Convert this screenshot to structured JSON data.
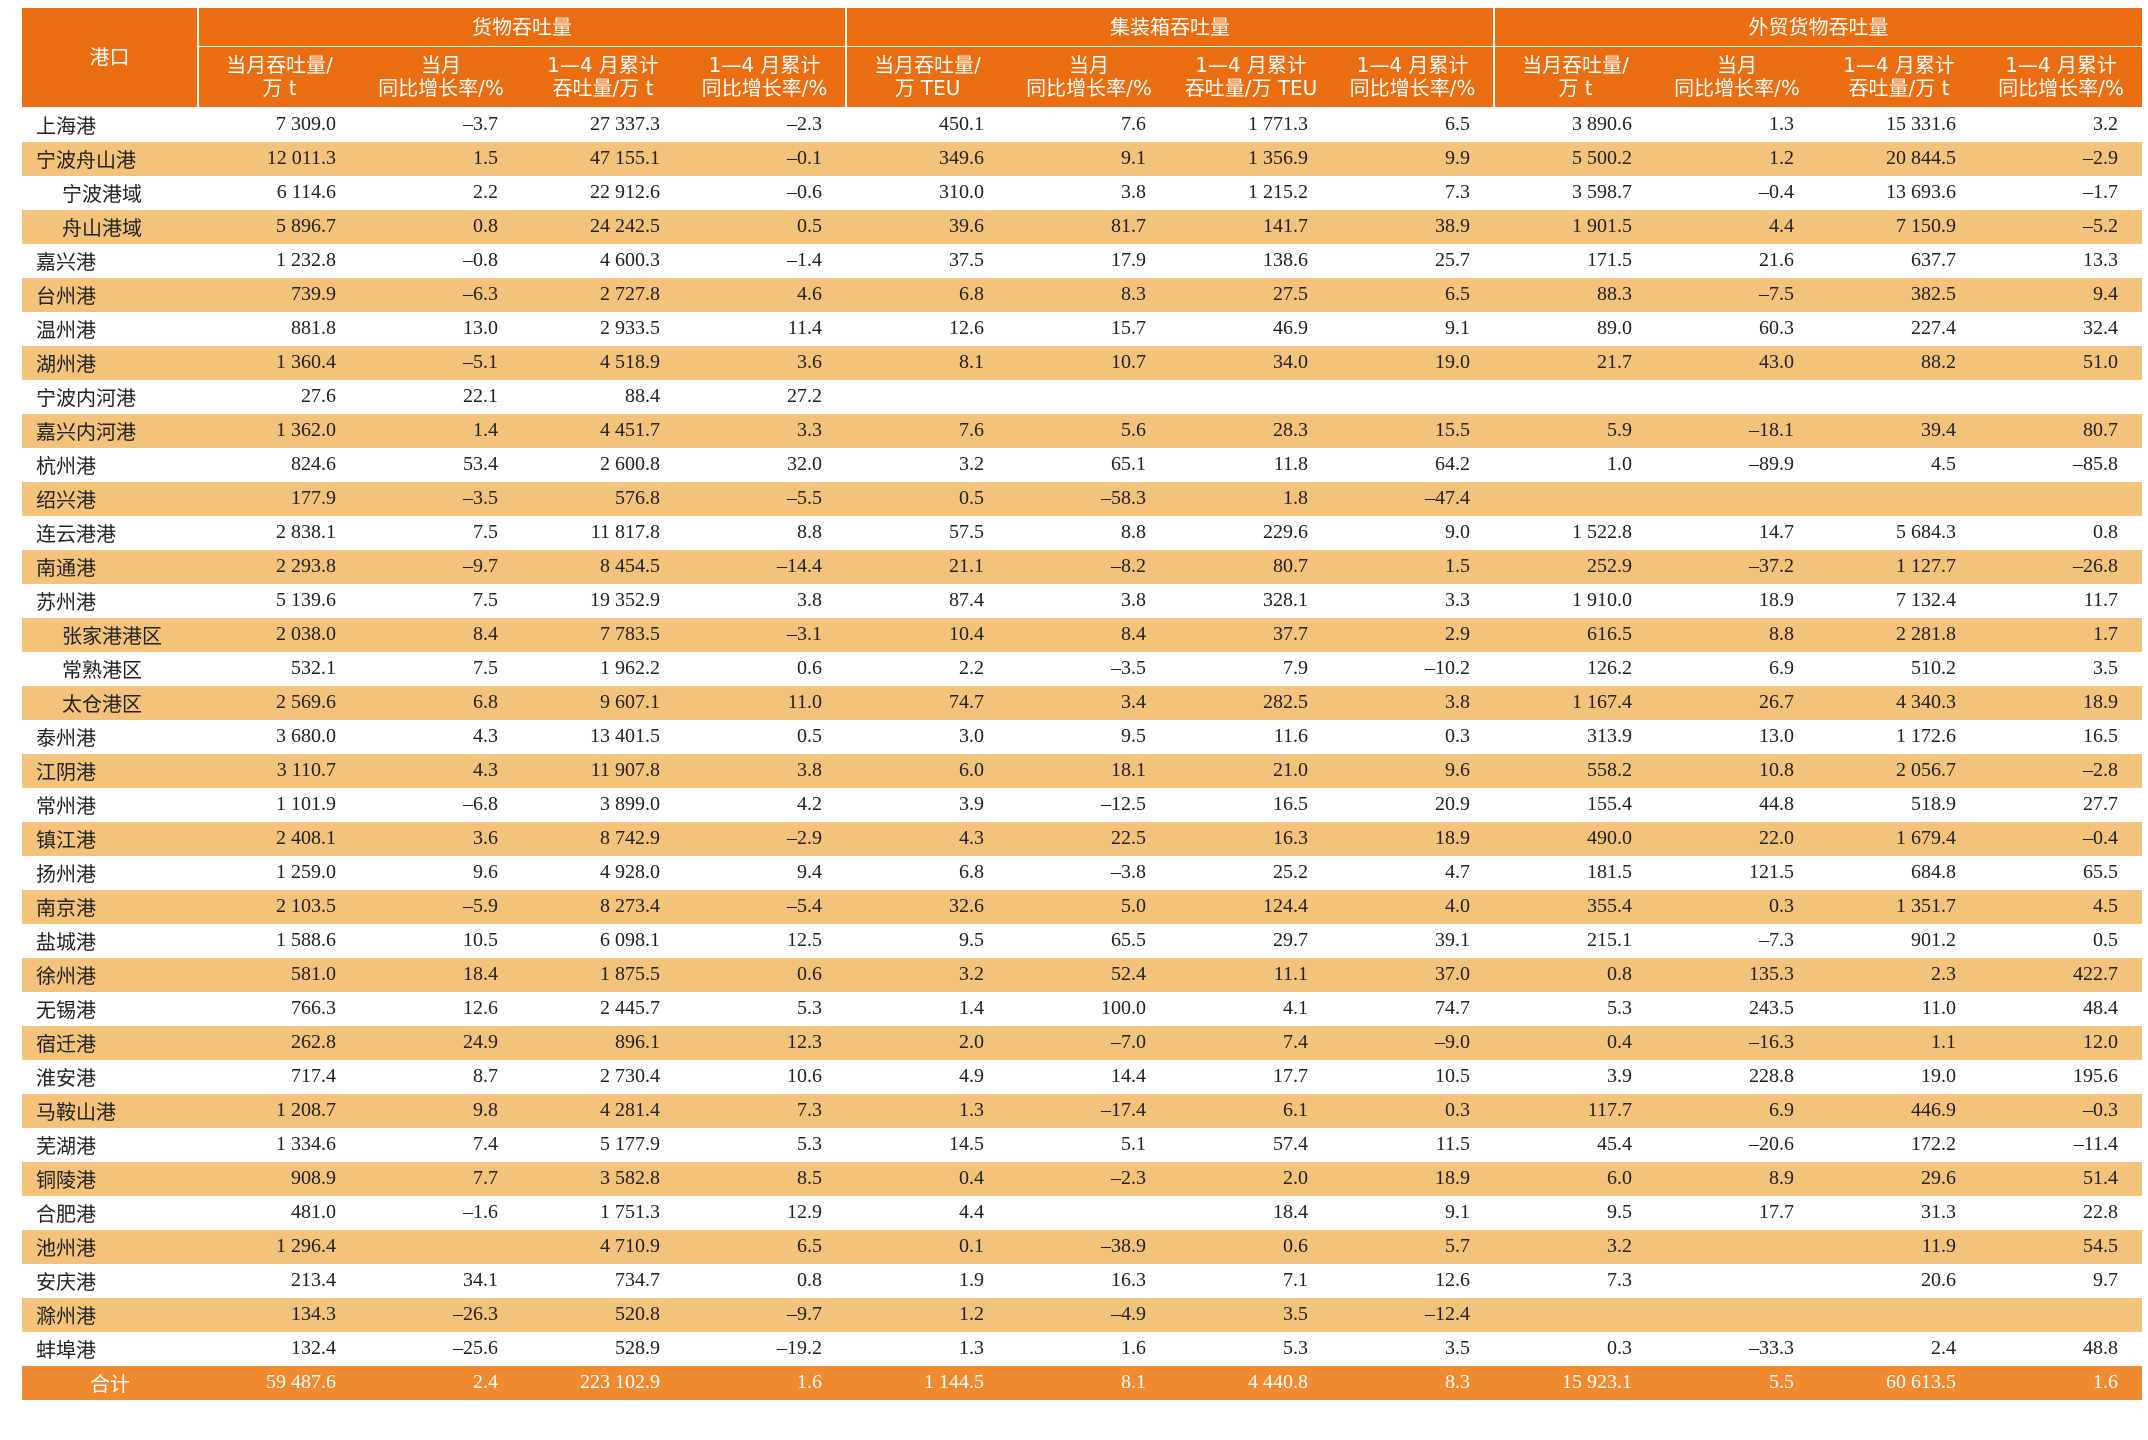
{
  "table": {
    "port_header": "港口",
    "groups": [
      "货物吞吐量",
      "集装箱吞吐量",
      "外贸货物吞吐量"
    ],
    "columns": [
      [
        "当月吞吐量/",
        "万 t"
      ],
      [
        "当月",
        "同比增长率/%"
      ],
      [
        "1—4 月累计",
        "吞吐量/万 t"
      ],
      [
        "1—4 月累计",
        "同比增长率/%"
      ],
      [
        "当月吞吐量/",
        "万 TEU"
      ],
      [
        "当月",
        "同比增长率/%"
      ],
      [
        "1—4 月累计",
        "吞吐量/万 TEU"
      ],
      [
        "1—4 月累计",
        "同比增长率/%"
      ],
      [
        "当月吞吐量/",
        "万 t"
      ],
      [
        "当月",
        "同比增长率/%"
      ],
      [
        "1—4 月累计",
        "吞吐量/万 t"
      ],
      [
        "1—4 月累计",
        "同比增长率/%"
      ]
    ],
    "rows": [
      {
        "port": "上海港",
        "cells": [
          "7 309.0",
          "–3.7",
          "27 337.3",
          "–2.3",
          "450.1",
          "7.6",
          "1 771.3",
          "6.5",
          "3 890.6",
          "1.3",
          "15 331.6",
          "3.2"
        ]
      },
      {
        "port": "宁波舟山港",
        "cells": [
          "12 011.3",
          "1.5",
          "47 155.1",
          "–0.1",
          "349.6",
          "9.1",
          "1 356.9",
          "9.9",
          "5 500.2",
          "1.2",
          "20 844.5",
          "–2.9"
        ]
      },
      {
        "port": "宁波港域",
        "indent": true,
        "cells": [
          "6 114.6",
          "2.2",
          "22 912.6",
          "–0.6",
          "310.0",
          "3.8",
          "1 215.2",
          "7.3",
          "3 598.7",
          "–0.4",
          "13 693.6",
          "–1.7"
        ]
      },
      {
        "port": "舟山港域",
        "indent": true,
        "cells": [
          "5 896.7",
          "0.8",
          "24 242.5",
          "0.5",
          "39.6",
          "81.7",
          "141.7",
          "38.9",
          "1 901.5",
          "4.4",
          "7 150.9",
          "–5.2"
        ]
      },
      {
        "port": "嘉兴港",
        "cells": [
          "1 232.8",
          "–0.8",
          "4 600.3",
          "–1.4",
          "37.5",
          "17.9",
          "138.6",
          "25.7",
          "171.5",
          "21.6",
          "637.7",
          "13.3"
        ]
      },
      {
        "port": "台州港",
        "cells": [
          "739.9",
          "–6.3",
          "2 727.8",
          "4.6",
          "6.8",
          "8.3",
          "27.5",
          "6.5",
          "88.3",
          "–7.5",
          "382.5",
          "9.4"
        ]
      },
      {
        "port": "温州港",
        "cells": [
          "881.8",
          "13.0",
          "2 933.5",
          "11.4",
          "12.6",
          "15.7",
          "46.9",
          "9.1",
          "89.0",
          "60.3",
          "227.4",
          "32.4"
        ]
      },
      {
        "port": "湖州港",
        "cells": [
          "1 360.4",
          "–5.1",
          "4 518.9",
          "3.6",
          "8.1",
          "10.7",
          "34.0",
          "19.0",
          "21.7",
          "43.0",
          "88.2",
          "51.0"
        ]
      },
      {
        "port": "宁波内河港",
        "cells": [
          "27.6",
          "22.1",
          "88.4",
          "27.2",
          null,
          null,
          null,
          null,
          null,
          null,
          null,
          null
        ]
      },
      {
        "port": "嘉兴内河港",
        "cells": [
          "1 362.0",
          "1.4",
          "4 451.7",
          "3.3",
          "7.6",
          "5.6",
          "28.3",
          "15.5",
          "5.9",
          "–18.1",
          "39.4",
          "80.7"
        ]
      },
      {
        "port": "杭州港",
        "cells": [
          "824.6",
          "53.4",
          "2 600.8",
          "32.0",
          "3.2",
          "65.1",
          "11.8",
          "64.2",
          "1.0",
          "–89.9",
          "4.5",
          "–85.8"
        ]
      },
      {
        "port": "绍兴港",
        "cells": [
          "177.9",
          "–3.5",
          "576.8",
          "–5.5",
          "0.5",
          "–58.3",
          "1.8",
          "–47.4",
          null,
          null,
          null,
          null
        ]
      },
      {
        "port": "连云港港",
        "cells": [
          "2 838.1",
          "7.5",
          "11 817.8",
          "8.8",
          "57.5",
          "8.8",
          "229.6",
          "9.0",
          "1 522.8",
          "14.7",
          "5 684.3",
          "0.8"
        ]
      },
      {
        "port": "南通港",
        "cells": [
          "2 293.8",
          "–9.7",
          "8 454.5",
          "–14.4",
          "21.1",
          "–8.2",
          "80.7",
          "1.5",
          "252.9",
          "–37.2",
          "1 127.7",
          "–26.8"
        ]
      },
      {
        "port": "苏州港",
        "cells": [
          "5 139.6",
          "7.5",
          "19 352.9",
          "3.8",
          "87.4",
          "3.8",
          "328.1",
          "3.3",
          "1 910.0",
          "18.9",
          "7 132.4",
          "11.7"
        ]
      },
      {
        "port": "张家港港区",
        "indent": true,
        "cells": [
          "2 038.0",
          "8.4",
          "7 783.5",
          "–3.1",
          "10.4",
          "8.4",
          "37.7",
          "2.9",
          "616.5",
          "8.8",
          "2 281.8",
          "1.7"
        ]
      },
      {
        "port": "常熟港区",
        "indent": true,
        "cells": [
          "532.1",
          "7.5",
          "1 962.2",
          "0.6",
          "2.2",
          "–3.5",
          "7.9",
          "–10.2",
          "126.2",
          "6.9",
          "510.2",
          "3.5"
        ]
      },
      {
        "port": "太仓港区",
        "indent": true,
        "cells": [
          "2 569.6",
          "6.8",
          "9 607.1",
          "11.0",
          "74.7",
          "3.4",
          "282.5",
          "3.8",
          "1 167.4",
          "26.7",
          "4 340.3",
          "18.9"
        ]
      },
      {
        "port": "泰州港",
        "cells": [
          "3 680.0",
          "4.3",
          "13 401.5",
          "0.5",
          "3.0",
          "9.5",
          "11.6",
          "0.3",
          "313.9",
          "13.0",
          "1 172.6",
          "16.5"
        ]
      },
      {
        "port": "江阴港",
        "cells": [
          "3 110.7",
          "4.3",
          "11 907.8",
          "3.8",
          "6.0",
          "18.1",
          "21.0",
          "9.6",
          "558.2",
          "10.8",
          "2 056.7",
          "–2.8"
        ]
      },
      {
        "port": "常州港",
        "cells": [
          "1 101.9",
          "–6.8",
          "3 899.0",
          "4.2",
          "3.9",
          "–12.5",
          "16.5",
          "20.9",
          "155.4",
          "44.8",
          "518.9",
          "27.7"
        ]
      },
      {
        "port": "镇江港",
        "cells": [
          "2 408.1",
          "3.6",
          "8 742.9",
          "–2.9",
          "4.3",
          "22.5",
          "16.3",
          "18.9",
          "490.0",
          "22.0",
          "1 679.4",
          "–0.4"
        ]
      },
      {
        "port": "扬州港",
        "cells": [
          "1 259.0",
          "9.6",
          "4 928.0",
          "9.4",
          "6.8",
          "–3.8",
          "25.2",
          "4.7",
          "181.5",
          "121.5",
          "684.8",
          "65.5"
        ]
      },
      {
        "port": "南京港",
        "cells": [
          "2 103.5",
          "–5.9",
          "8 273.4",
          "–5.4",
          "32.6",
          "5.0",
          "124.4",
          "4.0",
          "355.4",
          "0.3",
          "1 351.7",
          "4.5"
        ]
      },
      {
        "port": "盐城港",
        "cells": [
          "1 588.6",
          "10.5",
          "6 098.1",
          "12.5",
          "9.5",
          "65.5",
          "29.7",
          "39.1",
          "215.1",
          "–7.3",
          "901.2",
          "0.5"
        ]
      },
      {
        "port": "徐州港",
        "cells": [
          "581.0",
          "18.4",
          "1 875.5",
          "0.6",
          "3.2",
          "52.4",
          "11.1",
          "37.0",
          "0.8",
          "135.3",
          "2.3",
          "422.7"
        ]
      },
      {
        "port": "无锡港",
        "cells": [
          "766.3",
          "12.6",
          "2 445.7",
          "5.3",
          "1.4",
          "100.0",
          "4.1",
          "74.7",
          "5.3",
          "243.5",
          "11.0",
          "48.4"
        ]
      },
      {
        "port": "宿迁港",
        "cells": [
          "262.8",
          "24.9",
          "896.1",
          "12.3",
          "2.0",
          "–7.0",
          "7.4",
          "–9.0",
          "0.4",
          "–16.3",
          "1.1",
          "12.0"
        ]
      },
      {
        "port": "淮安港",
        "cells": [
          "717.4",
          "8.7",
          "2 730.4",
          "10.6",
          "4.9",
          "14.4",
          "17.7",
          "10.5",
          "3.9",
          "228.8",
          "19.0",
          "195.6"
        ]
      },
      {
        "port": "马鞍山港",
        "cells": [
          "1 208.7",
          "9.8",
          "4 281.4",
          "7.3",
          "1.3",
          "–17.4",
          "6.1",
          "0.3",
          "117.7",
          "6.9",
          "446.9",
          "–0.3"
        ]
      },
      {
        "port": "芜湖港",
        "cells": [
          "1 334.6",
          "7.4",
          "5 177.9",
          "5.3",
          "14.5",
          "5.1",
          "57.4",
          "11.5",
          "45.4",
          "–20.6",
          "172.2",
          "–11.4"
        ]
      },
      {
        "port": "铜陵港",
        "cells": [
          "908.9",
          "7.7",
          "3 582.8",
          "8.5",
          "0.4",
          "–2.3",
          "2.0",
          "18.9",
          "6.0",
          "8.9",
          "29.6",
          "51.4"
        ]
      },
      {
        "port": "合肥港",
        "cells": [
          "481.0",
          "–1.6",
          "1 751.3",
          "12.9",
          "4.4",
          null,
          "18.4",
          "9.1",
          "9.5",
          "17.7",
          "31.3",
          "22.8"
        ]
      },
      {
        "port": "池州港",
        "cells": [
          "1 296.4",
          null,
          "4 710.9",
          "6.5",
          "0.1",
          "–38.9",
          "0.6",
          "5.7",
          "3.2",
          null,
          "11.9",
          "54.5"
        ]
      },
      {
        "port": "安庆港",
        "cells": [
          "213.4",
          "34.1",
          "734.7",
          "0.8",
          "1.9",
          "16.3",
          "7.1",
          "12.6",
          "7.3",
          null,
          "20.6",
          "9.7"
        ]
      },
      {
        "port": "滁州港",
        "cells": [
          "134.3",
          "–26.3",
          "520.8",
          "–9.7",
          "1.2",
          "–4.9",
          "3.5",
          "–12.4",
          null,
          null,
          null,
          null
        ]
      },
      {
        "port": "蚌埠港",
        "cells": [
          "132.4",
          "–25.6",
          "528.9",
          "–19.2",
          "1.3",
          "1.6",
          "5.3",
          "3.5",
          "0.3",
          "–33.3",
          "2.4",
          "48.8"
        ]
      }
    ],
    "total": {
      "port": "合计",
      "cells": [
        "59 487.6",
        "2.4",
        "223 102.9",
        "1.6",
        "1 144.5",
        "8.1",
        "4 440.8",
        "8.3",
        "15 923.1",
        "5.5",
        "60 613.5",
        "1.6"
      ]
    }
  }
}
